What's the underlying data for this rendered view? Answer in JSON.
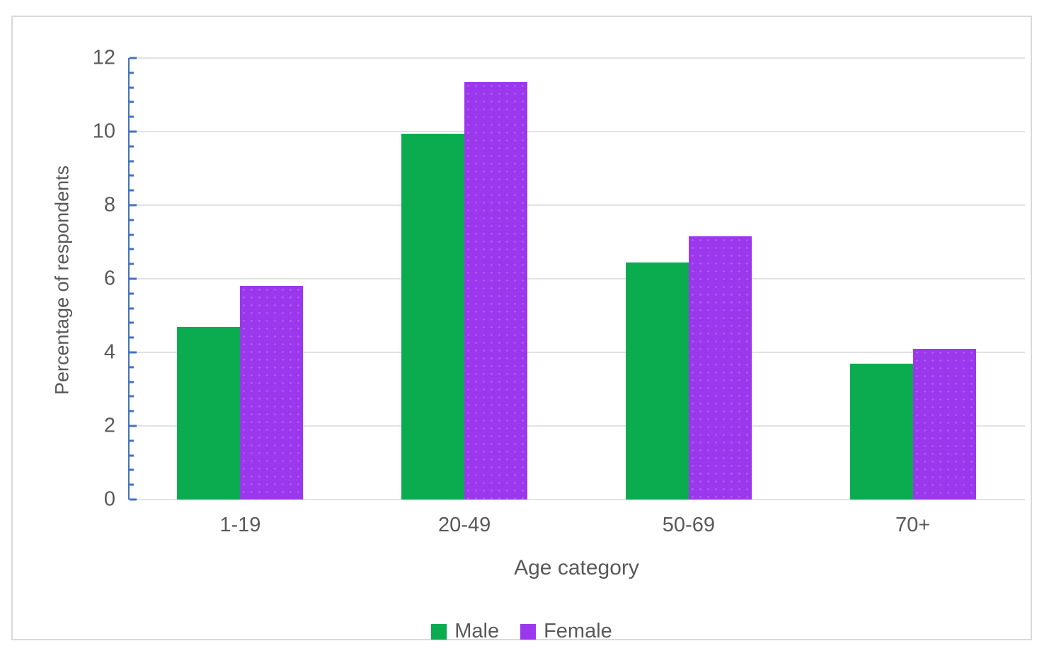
{
  "chart_data": {
    "type": "bar",
    "categories": [
      "1-19",
      "20-49",
      "50-69",
      "70+"
    ],
    "series": [
      {
        "name": "Male",
        "color": "#0bac4f",
        "values": [
          4.7,
          9.95,
          6.45,
          3.7
        ]
      },
      {
        "name": "Female",
        "color": "#9b38ee",
        "values": [
          5.8,
          11.35,
          7.15,
          4.1
        ]
      }
    ],
    "xlabel": "Age category",
    "ylabel": "Percentage of respondents",
    "ylim": [
      0,
      12
    ],
    "y_major_step": 2,
    "y_minor_step": 0.4,
    "y_tick_labels": [
      "0",
      "2",
      "4",
      "6",
      "8",
      "10",
      "12"
    ],
    "grid": "horizontal",
    "legend_position": "bottom-center",
    "colors": {
      "axis_line": "#4472c4",
      "gridline": "#e2e2e2",
      "text": "#595959",
      "frame_border": "#d9d9d9",
      "background": "#ffffff"
    }
  }
}
